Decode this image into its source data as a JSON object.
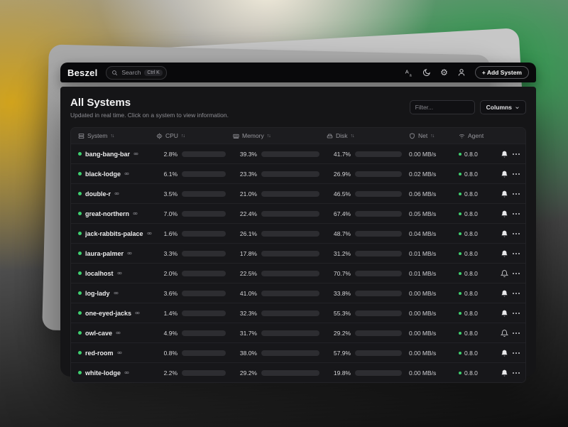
{
  "header": {
    "logo": "Beszel",
    "search_label": "Search",
    "search_shortcut": "Ctrl K",
    "add_system_label": "+ Add System"
  },
  "page": {
    "title": "All Systems",
    "subtitle": "Updated in real time. Click on a system to view information.",
    "filter_placeholder": "Filter...",
    "columns_label": "Columns"
  },
  "table": {
    "sort_glyph": "↑↓",
    "headers": [
      {
        "label": "System",
        "icon": "server",
        "sortable": true
      },
      {
        "label": "CPU",
        "icon": "cpu",
        "sortable": true
      },
      {
        "label": "Memory",
        "icon": "memory",
        "sortable": true
      },
      {
        "label": "Disk",
        "icon": "hard-drive",
        "sortable": true
      },
      {
        "label": "Net",
        "icon": "shield",
        "sortable": true
      },
      {
        "label": "Agent",
        "icon": "wifi",
        "sortable": false
      }
    ],
    "rows": [
      {
        "name": "bang-bang-bar",
        "status": "up",
        "cpu": 2.8,
        "memory": 39.3,
        "disk": 41.7,
        "disk_warn": false,
        "net": "0.00 MB/s",
        "agent": "0.8.0",
        "bell": "filled"
      },
      {
        "name": "black-lodge",
        "status": "up",
        "cpu": 6.1,
        "memory": 23.3,
        "disk": 26.9,
        "disk_warn": false,
        "net": "0.02 MB/s",
        "agent": "0.8.0",
        "bell": "filled"
      },
      {
        "name": "double-r",
        "status": "up",
        "cpu": 3.5,
        "memory": 21.0,
        "disk": 46.5,
        "disk_warn": false,
        "net": "0.06 MB/s",
        "agent": "0.8.0",
        "bell": "filled"
      },
      {
        "name": "great-northern",
        "status": "up",
        "cpu": 7.0,
        "memory": 22.4,
        "disk": 67.4,
        "disk_warn": true,
        "net": "0.05 MB/s",
        "agent": "0.8.0",
        "bell": "filled"
      },
      {
        "name": "jack-rabbits-palace",
        "status": "up",
        "cpu": 1.6,
        "memory": 26.1,
        "disk": 48.7,
        "disk_warn": false,
        "net": "0.04 MB/s",
        "agent": "0.8.0",
        "bell": "filled"
      },
      {
        "name": "laura-palmer",
        "status": "up",
        "cpu": 3.3,
        "memory": 17.8,
        "disk": 31.2,
        "disk_warn": false,
        "net": "0.01 MB/s",
        "agent": "0.8.0",
        "bell": "filled"
      },
      {
        "name": "localhost",
        "status": "up",
        "cpu": 2.0,
        "memory": 22.5,
        "disk": 70.7,
        "disk_warn": true,
        "net": "0.01 MB/s",
        "agent": "0.8.0",
        "bell": "outline"
      },
      {
        "name": "log-lady",
        "status": "up",
        "cpu": 3.6,
        "memory": 41.0,
        "disk": 33.8,
        "disk_warn": false,
        "net": "0.00 MB/s",
        "agent": "0.8.0",
        "bell": "filled"
      },
      {
        "name": "one-eyed-jacks",
        "status": "up",
        "cpu": 1.4,
        "memory": 32.3,
        "disk": 55.3,
        "disk_warn": false,
        "net": "0.00 MB/s",
        "agent": "0.8.0",
        "bell": "filled"
      },
      {
        "name": "owl-cave",
        "status": "up",
        "cpu": 4.9,
        "memory": 31.7,
        "disk": 29.2,
        "disk_warn": false,
        "net": "0.00 MB/s",
        "agent": "0.8.0",
        "bell": "outline"
      },
      {
        "name": "red-room",
        "status": "up",
        "cpu": 0.8,
        "memory": 38.0,
        "disk": 57.9,
        "disk_warn": false,
        "net": "0.00 MB/s",
        "agent": "0.8.0",
        "bell": "filled"
      },
      {
        "name": "white-lodge",
        "status": "up",
        "cpu": 2.2,
        "memory": 29.2,
        "disk": 19.8,
        "disk_warn": false,
        "net": "0.00 MB/s",
        "agent": "0.8.0",
        "bell": "filled"
      }
    ]
  },
  "colors": {
    "accent_green": "#3fcf6f",
    "warn_yellow": "#e9b90e"
  }
}
